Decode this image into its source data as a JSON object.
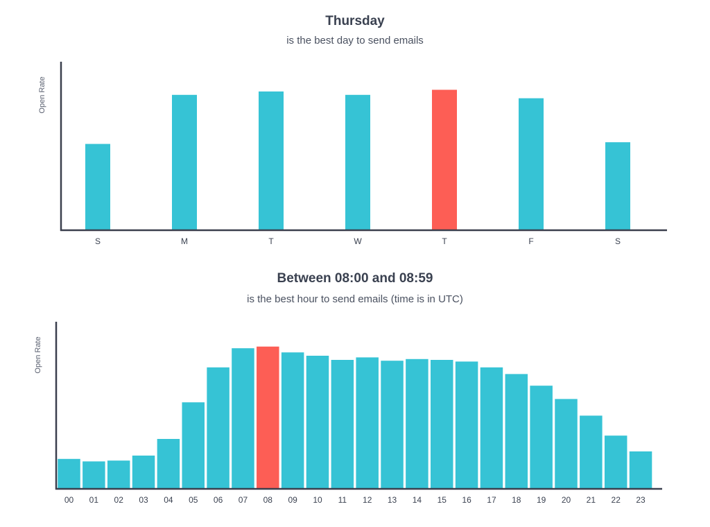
{
  "chart_data": [
    {
      "type": "bar",
      "title": "Thursday",
      "subtitle": "is the best day to send emails",
      "ylabel": "Open Rate",
      "xlabel": "",
      "categories": [
        "S",
        "M",
        "T",
        "W",
        "T",
        "F",
        "S"
      ],
      "values": [
        51,
        80,
        82,
        80,
        83,
        78,
        52
      ],
      "highlight_index": 4,
      "ylim": [
        0,
        100
      ],
      "grid": false,
      "legend": "none",
      "colors": {
        "bar": "#36c3d5",
        "highlight": "#fd5e55",
        "axis": "#3a3f4d"
      }
    },
    {
      "type": "bar",
      "title": "Between 08:00 and 08:59",
      "subtitle": "is the best hour to send emails (time is in UTC)",
      "ylabel": "Open Rate",
      "xlabel": "",
      "categories": [
        "00",
        "01",
        "02",
        "03",
        "04",
        "05",
        "06",
        "07",
        "08",
        "09",
        "10",
        "11",
        "12",
        "13",
        "14",
        "15",
        "16",
        "17",
        "18",
        "19",
        "20",
        "21",
        "22",
        "23"
      ],
      "values": [
        18,
        16.5,
        17,
        20,
        30,
        52,
        73,
        84.5,
        85.5,
        82,
        80,
        77.5,
        79,
        77,
        78,
        77.5,
        76.5,
        73,
        69,
        62,
        54,
        44,
        32,
        22.5
      ],
      "highlight_index": 8,
      "ylim": [
        0,
        100
      ],
      "grid": false,
      "legend": "none",
      "colors": {
        "bar": "#36c3d5",
        "highlight": "#fd5e55",
        "axis": "#3a3f4d"
      }
    }
  ]
}
